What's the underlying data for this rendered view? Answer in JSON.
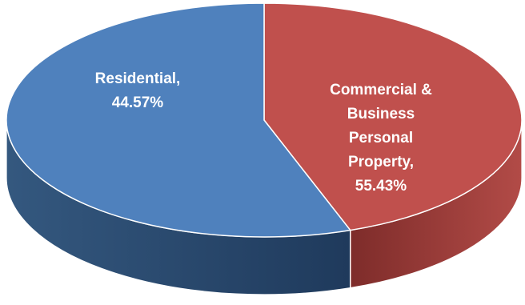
{
  "chart_data": {
    "type": "pie",
    "style": "3d",
    "slices": [
      {
        "name": "Residential",
        "value": 44.57,
        "label_lines": [
          "Residential,",
          "44.57%"
        ],
        "color": "#C0504D",
        "side_color_dark": "#7E2C2A",
        "side_color_light": "#B24B47"
      },
      {
        "name": "Commercial & Business Personal Property",
        "value": 55.43,
        "label_lines": [
          "Commercial &",
          "Business",
          "Personal",
          "Property,",
          "55.43%"
        ],
        "color": "#4F81BD",
        "side_color_dark": "#1F3A5C",
        "side_color_light": "#34587F"
      }
    ]
  }
}
